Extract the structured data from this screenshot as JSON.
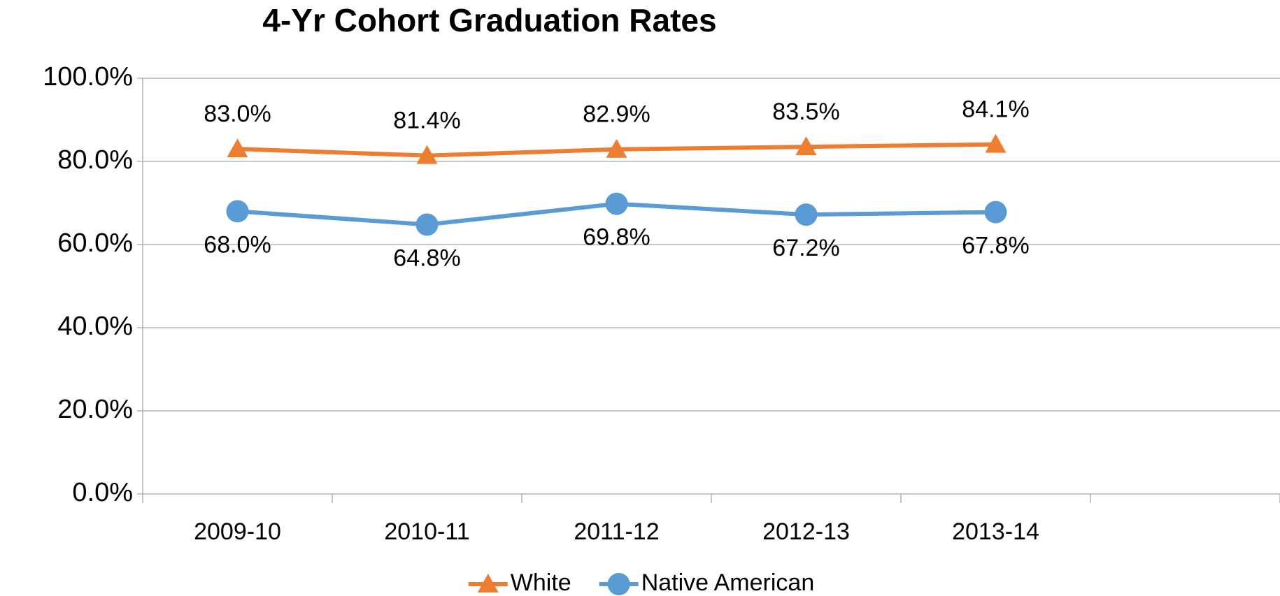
{
  "chart_data": {
    "type": "line",
    "title": "4-Yr Cohort Graduation Rates",
    "categories": [
      "2009-10",
      "2010-11",
      "2011-12",
      "2012-13",
      "2013-14",
      null
    ],
    "series": [
      {
        "name": "White",
        "color": "#ed7d31",
        "marker": "triangle",
        "values": [
          83.0,
          81.4,
          82.9,
          83.5,
          84.1,
          null
        ],
        "value_labels": [
          "83.0%",
          "81.4%",
          "82.9%",
          "83.5%",
          "84.1%",
          null
        ],
        "label_position": "above"
      },
      {
        "name": "Native American",
        "color": "#5b9bd5",
        "marker": "circle",
        "values": [
          68.0,
          64.8,
          69.8,
          67.2,
          67.8,
          null
        ],
        "value_labels": [
          "68.0%",
          "64.8%",
          "69.8%",
          "67.2%",
          "67.8%",
          null
        ],
        "label_position": "below"
      }
    ],
    "ylim": [
      0,
      100
    ],
    "yticks": [
      {
        "value": 0,
        "label": "0.0%"
      },
      {
        "value": 20,
        "label": "20.0%"
      },
      {
        "value": 40,
        "label": "40.0%"
      },
      {
        "value": 60,
        "label": "60.0%"
      },
      {
        "value": 80,
        "label": "80.0%"
      },
      {
        "value": 100,
        "label": "100.0%"
      }
    ],
    "grid": true,
    "legend": "bottom"
  }
}
